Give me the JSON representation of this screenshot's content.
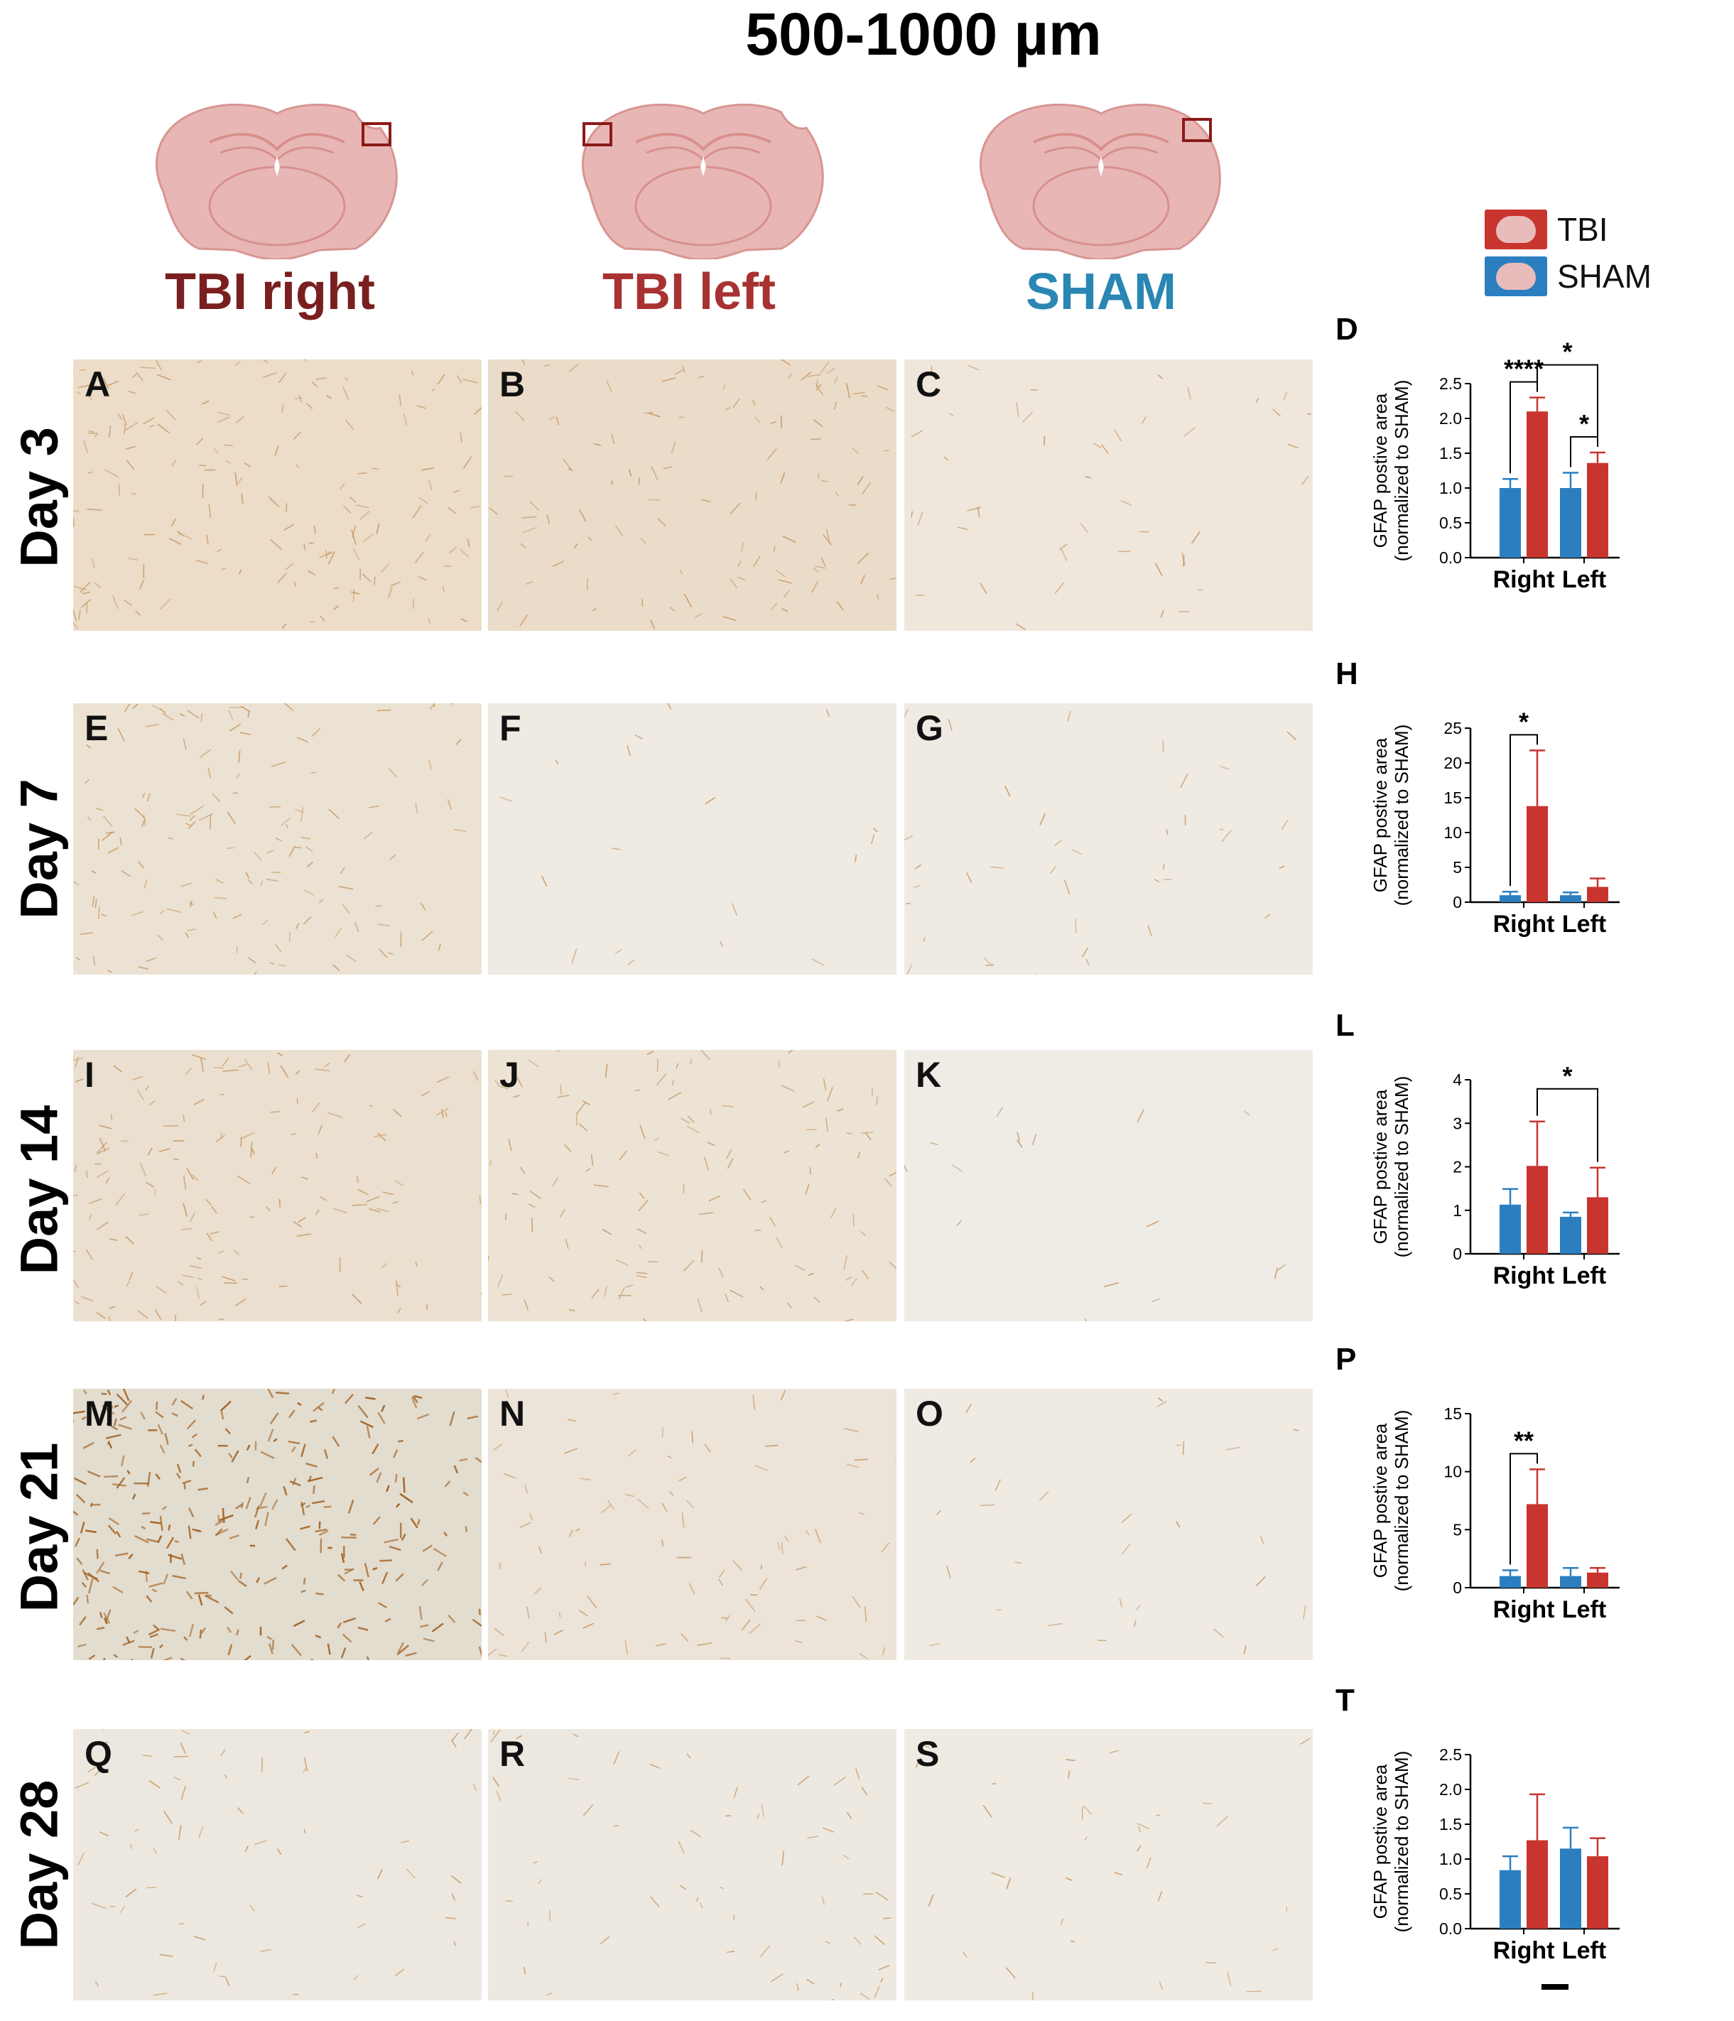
{
  "figure": {
    "title": "500-1000 µm",
    "columns": [
      {
        "label": "TBI right",
        "color": "#7a1f1f"
      },
      {
        "label": "TBI left",
        "color": "#a83232"
      },
      {
        "label": "SHAM",
        "color": "#2a86b3"
      }
    ],
    "rows": [
      {
        "label": "Day 3",
        "panels": [
          "A",
          "B",
          "C"
        ]
      },
      {
        "label": "Day 7",
        "panels": [
          "E",
          "F",
          "G"
        ]
      },
      {
        "label": "Day 14",
        "panels": [
          "I",
          "J",
          "K"
        ]
      },
      {
        "label": "Day 21",
        "panels": [
          "M",
          "N",
          "O"
        ]
      },
      {
        "label": "Day 28",
        "panels": [
          "Q",
          "R",
          "S"
        ]
      }
    ],
    "legend": [
      {
        "label": "TBI",
        "color": "#c8352e"
      },
      {
        "label": "SHAM",
        "color": "#2b7fc0"
      }
    ],
    "colors": {
      "tbi": "#c8352e",
      "sham": "#2b7fc0",
      "brain": "#e8b7b5",
      "brain_line": "#d89592",
      "roi": "#8b1a1a"
    }
  },
  "chart_data": [
    {
      "panel": "D",
      "type": "bar",
      "categories": [
        "Right",
        "Left"
      ],
      "ylabel": "GFAP postive area (normalized to SHAM)",
      "ylim": [
        0,
        2.5
      ],
      "ticks": [
        "0.0",
        "0.5",
        "1.0",
        "1.5",
        "2.0",
        "2.5"
      ],
      "tickvals": [
        0,
        0.5,
        1.0,
        1.5,
        2.0,
        2.5
      ],
      "series": [
        {
          "name": "SHAM",
          "values": [
            1.0,
            1.0
          ],
          "errors": [
            0.13,
            0.22
          ]
        },
        {
          "name": "TBI",
          "values": [
            2.1,
            1.36
          ],
          "errors": [
            0.2,
            0.15
          ]
        }
      ],
      "annotations": [
        {
          "text": "****",
          "between": "Right SHAM–Right TBI"
        },
        {
          "text": "*",
          "between": "Left SHAM–Left TBI"
        },
        {
          "text": "*",
          "between": "Right TBI–Left TBI"
        }
      ]
    },
    {
      "panel": "H",
      "type": "bar",
      "categories": [
        "Right",
        "Left"
      ],
      "ylabel": "GFAP postive area (normalized to SHAM)",
      "ylim": [
        0,
        25
      ],
      "ticks": [
        "0",
        "5",
        "10",
        "15",
        "20",
        "25"
      ],
      "tickvals": [
        0,
        5,
        10,
        15,
        20,
        25
      ],
      "series": [
        {
          "name": "SHAM",
          "values": [
            1.0,
            1.0
          ],
          "errors": [
            0.5,
            0.4
          ]
        },
        {
          "name": "TBI",
          "values": [
            13.8,
            2.2
          ],
          "errors": [
            8.0,
            1.2
          ]
        }
      ],
      "annotations": [
        {
          "text": "*",
          "between": "Right SHAM–Right TBI"
        }
      ]
    },
    {
      "panel": "L",
      "type": "bar",
      "categories": [
        "Right",
        "Left"
      ],
      "ylabel": "GFAP postive area (normalized to SHAM)",
      "ylim": [
        0,
        4
      ],
      "ticks": [
        "0",
        "1",
        "2",
        "3",
        "4"
      ],
      "tickvals": [
        0,
        1,
        2,
        3,
        4
      ],
      "series": [
        {
          "name": "SHAM",
          "values": [
            1.13,
            0.85
          ],
          "errors": [
            0.36,
            0.1
          ]
        },
        {
          "name": "TBI",
          "values": [
            2.02,
            1.3
          ],
          "errors": [
            1.02,
            0.68
          ]
        }
      ],
      "annotations": [
        {
          "text": "*",
          "between": "Right TBI–Left TBI"
        }
      ]
    },
    {
      "panel": "P",
      "type": "bar",
      "categories": [
        "Right",
        "Left"
      ],
      "ylabel": "GFAP postive area (normalized to SHAM)",
      "ylim": [
        0,
        15
      ],
      "ticks": [
        "0",
        "5",
        "10",
        "15"
      ],
      "tickvals": [
        0,
        5,
        10,
        15
      ],
      "series": [
        {
          "name": "SHAM",
          "values": [
            1.0,
            1.0
          ],
          "errors": [
            0.5,
            0.7
          ]
        },
        {
          "name": "TBI",
          "values": [
            7.2,
            1.3
          ],
          "errors": [
            3.0,
            0.4
          ]
        }
      ],
      "annotations": [
        {
          "text": "**",
          "between": "Right SHAM–Right TBI"
        }
      ]
    },
    {
      "panel": "T",
      "type": "bar",
      "categories": [
        "Right",
        "Left"
      ],
      "ylabel": "GFAP postive area (normalized to SHAM)",
      "ylim": [
        0,
        2.5
      ],
      "ticks": [
        "0.0",
        "0.5",
        "1.0",
        "1.5",
        "2.0",
        "2.5"
      ],
      "tickvals": [
        0,
        0.5,
        1.0,
        1.5,
        2.0,
        2.5
      ],
      "series": [
        {
          "name": "SHAM",
          "values": [
            0.84,
            1.15
          ],
          "errors": [
            0.2,
            0.3
          ]
        },
        {
          "name": "TBI",
          "values": [
            1.27,
            1.04
          ],
          "errors": [
            0.66,
            0.26
          ]
        }
      ],
      "annotations": []
    }
  ]
}
